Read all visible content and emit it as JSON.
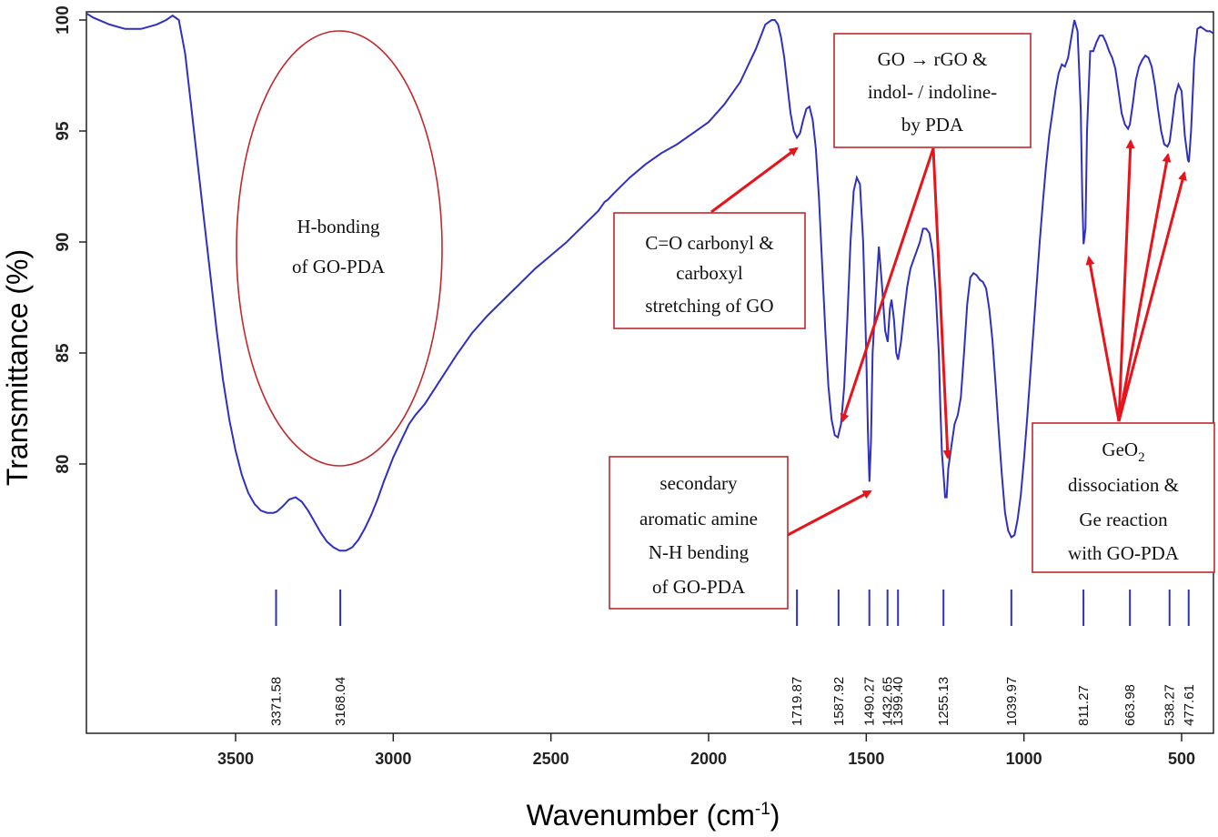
{
  "chart_data": {
    "type": "line",
    "xlabel": "Wavenumber (cm",
    "xlabel_sup": "-1",
    "xlabel_end": ")",
    "ylabel": "Transmittance (%)",
    "xlim": [
      4000,
      400
    ],
    "ylim": [
      71.5,
      100.3
    ],
    "x_ticks": [
      3500,
      3000,
      2500,
      2000,
      1500,
      1000,
      500
    ],
    "y_ticks": [
      80,
      85,
      90,
      95,
      100
    ],
    "series": [
      {
        "color": "#3030c0",
        "x": [
          4000,
          3950,
          3900,
          3850,
          3800,
          3750,
          3720,
          3700,
          3680,
          3660,
          3640,
          3620,
          3600,
          3580,
          3560,
          3540,
          3520,
          3500,
          3480,
          3460,
          3440,
          3420,
          3400,
          3380,
          3370,
          3350,
          3330,
          3310,
          3290,
          3270,
          3250,
          3230,
          3210,
          3190,
          3170,
          3150,
          3130,
          3110,
          3090,
          3070,
          3050,
          3030,
          3000,
          2970,
          2950,
          2930,
          2900,
          2850,
          2800,
          2750,
          2700,
          2650,
          2600,
          2550,
          2500,
          2450,
          2400,
          2350,
          2330,
          2320,
          2300,
          2250,
          2200,
          2150,
          2100,
          2050,
          2000,
          1950,
          1900,
          1850,
          1820,
          1800,
          1790,
          1780,
          1770,
          1760,
          1750,
          1740,
          1730,
          1720,
          1710,
          1700,
          1690,
          1680,
          1670,
          1660,
          1650,
          1640,
          1630,
          1620,
          1610,
          1600,
          1590,
          1580,
          1570,
          1560,
          1550,
          1540,
          1530,
          1520,
          1510,
          1500,
          1495,
          1490,
          1485,
          1480,
          1470,
          1460,
          1450,
          1440,
          1432,
          1425,
          1420,
          1412,
          1405,
          1399,
          1390,
          1380,
          1370,
          1360,
          1350,
          1340,
          1330,
          1320,
          1310,
          1300,
          1290,
          1280,
          1270,
          1265,
          1260,
          1255,
          1250,
          1245,
          1240,
          1230,
          1220,
          1210,
          1200,
          1190,
          1180,
          1170,
          1160,
          1150,
          1140,
          1130,
          1120,
          1110,
          1100,
          1090,
          1080,
          1070,
          1060,
          1050,
          1040,
          1030,
          1020,
          1010,
          1000,
          990,
          980,
          970,
          960,
          950,
          940,
          930,
          920,
          910,
          900,
          890,
          880,
          870,
          860,
          850,
          840,
          830,
          820,
          815,
          811,
          805,
          800,
          790,
          780,
          770,
          760,
          750,
          740,
          730,
          720,
          710,
          700,
          690,
          680,
          670,
          664,
          655,
          645,
          635,
          625,
          615,
          605,
          595,
          585,
          575,
          565,
          555,
          545,
          538,
          530,
          520,
          510,
          500,
          490,
          480,
          477,
          470,
          460,
          450,
          440,
          430,
          420,
          410,
          400
        ],
        "y": [
          100.3,
          100.1,
          99.8,
          99.6,
          99.6,
          99.8,
          100.0,
          100.2,
          100.0,
          98.5,
          96.0,
          93.5,
          91.0,
          88.5,
          86.0,
          83.8,
          82.0,
          80.6,
          79.5,
          78.7,
          78.2,
          77.9,
          77.8,
          77.8,
          77.85,
          78.1,
          78.4,
          78.5,
          78.3,
          77.9,
          77.4,
          76.9,
          76.5,
          76.25,
          76.1,
          76.1,
          76.25,
          76.6,
          77.1,
          77.7,
          78.4,
          79.2,
          80.3,
          81.2,
          81.8,
          82.2,
          82.7,
          83.8,
          84.9,
          85.9,
          86.7,
          87.4,
          88.1,
          88.8,
          89.4,
          90.0,
          90.7,
          91.4,
          91.8,
          91.9,
          92.2,
          92.9,
          93.5,
          94.0,
          94.4,
          94.9,
          95.4,
          96.2,
          97.2,
          98.7,
          99.8,
          100.0,
          100.0,
          99.8,
          99.2,
          98.3,
          97.0,
          95.8,
          95.0,
          94.7,
          94.9,
          95.5,
          96.0,
          96.1,
          95.5,
          94.2,
          92.0,
          89.0,
          86.0,
          83.5,
          82.0,
          81.3,
          81.2,
          81.8,
          83.5,
          86.5,
          90.0,
          92.3,
          92.9,
          92.6,
          90.0,
          85.0,
          81.5,
          79.2,
          81.0,
          85.0,
          87.5,
          89.8,
          88.0,
          86.0,
          85.5,
          87.0,
          87.4,
          86.5,
          85.0,
          84.7,
          85.5,
          86.8,
          88.0,
          88.8,
          89.2,
          89.6,
          90.0,
          90.6,
          90.6,
          90.4,
          89.6,
          87.8,
          85.0,
          82.5,
          80.5,
          79.5,
          78.5,
          78.5,
          79.8,
          80.8,
          81.8,
          82.2,
          83.0,
          85.0,
          87.2,
          88.4,
          88.6,
          88.5,
          88.3,
          88.2,
          87.9,
          87.0,
          85.6,
          83.6,
          81.5,
          79.5,
          77.8,
          77.0,
          76.7,
          76.8,
          77.5,
          78.6,
          80.2,
          82.0,
          84.0,
          86.0,
          88.0,
          90.0,
          91.8,
          93.4,
          94.8,
          95.8,
          96.8,
          97.6,
          98.0,
          97.9,
          98.3,
          99.2,
          100.0,
          99.5,
          96.0,
          92.0,
          89.9,
          90.6,
          95.0,
          98.6,
          98.6,
          99.0,
          99.3,
          99.3,
          99.0,
          98.6,
          98.3,
          97.8,
          96.8,
          95.8,
          95.3,
          95.1,
          95.3,
          96.2,
          97.3,
          97.9,
          98.2,
          98.4,
          98.3,
          97.9,
          97.1,
          96.0,
          95.0,
          94.4,
          94.3,
          94.5,
          95.4,
          96.6,
          97.1,
          96.8,
          94.8,
          93.7,
          93.6,
          95.0,
          98.2,
          99.6,
          99.7,
          99.6,
          99.5,
          99.5,
          99.4
        ]
      }
    ],
    "peak_markers": [
      {
        "x": 3371.58,
        "label": "3371.58"
      },
      {
        "x": 3168.04,
        "label": "3168.04"
      },
      {
        "x": 1719.87,
        "label": "1719.87"
      },
      {
        "x": 1587.92,
        "label": "1587.92"
      },
      {
        "x": 1490.27,
        "label": "1490.27"
      },
      {
        "x": 1432.65,
        "label": "1432.65"
      },
      {
        "x": 1399.4,
        "label": "1399.40"
      },
      {
        "x": 1255.13,
        "label": "1255.13"
      },
      {
        "x": 1039.97,
        "label": "1039.97"
      },
      {
        "x": 811.27,
        "label": "811.27"
      },
      {
        "x": 663.98,
        "label": "663.98"
      },
      {
        "x": 538.27,
        "label": "538.27"
      },
      {
        "x": 477.61,
        "label": "477.61"
      }
    ],
    "annotations": {
      "hbond": [
        "H-bonding",
        "of GO-PDA"
      ],
      "carbonyl": [
        "C=O carbonyl &",
        "carboxyl",
        "stretching of GO"
      ],
      "rgo": [
        "GO → rGO &",
        "indol- / indoline-",
        "by PDA"
      ],
      "amine": [
        "secondary",
        "aromatic amine",
        "N-H bending",
        "of GO-PDA"
      ],
      "geo2": [
        "dissociation &",
        "Ge reaction",
        "with GO-PDA"
      ],
      "geo2_title": "GeO",
      "geo2_sub": "2"
    },
    "colors": {
      "line": "#3030c0",
      "annotation": "#c0282c",
      "arrow": "#e8141c"
    },
    "grid": false
  }
}
